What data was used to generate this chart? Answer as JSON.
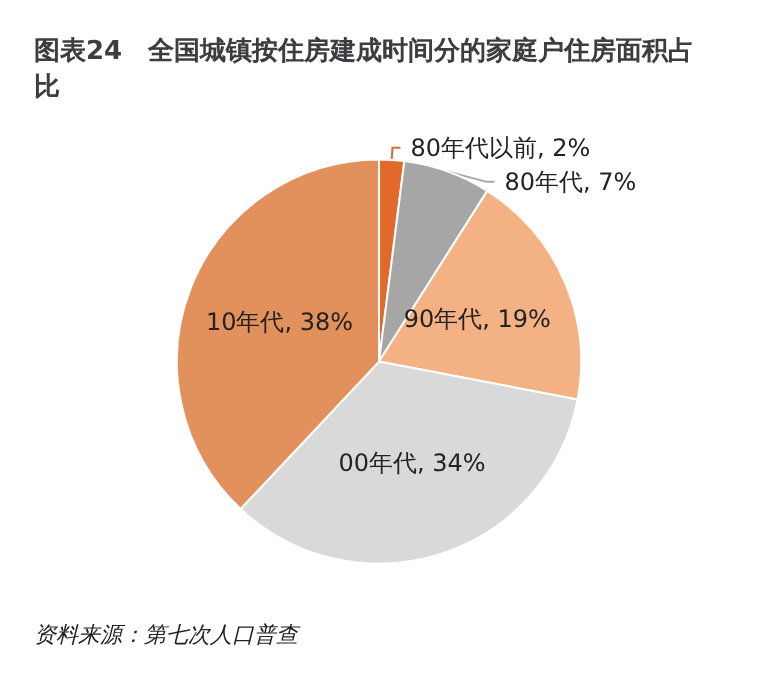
{
  "chart_data": {
    "type": "pie",
    "title": "图表24　全国城镇按住房建成时间分的家庭户住房面积占比",
    "categories": [
      "80年代以前",
      "80年代",
      "90年代",
      "00年代",
      "10年代"
    ],
    "values": [
      2,
      7,
      19,
      34,
      38
    ],
    "value_labels": [
      "2%",
      "7%",
      "19%",
      "34%",
      "38%"
    ],
    "colors": [
      "#e2692a",
      "#a6a6a6",
      "#f4b183",
      "#d9d9d9",
      "#e2905c"
    ],
    "legend": false,
    "annotations": [
      "资料来源：第七次人口普查"
    ]
  }
}
